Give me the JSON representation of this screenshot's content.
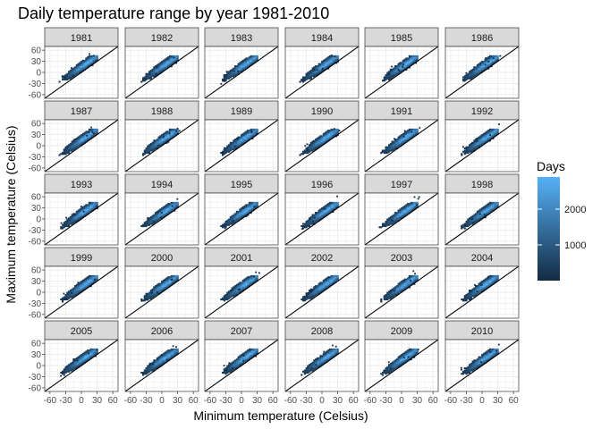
{
  "chart_data": {
    "type": "heatmap",
    "title": "Daily temperature range by year 1981-2010",
    "xlabel": "Minimum temperature (Celsius)",
    "ylabel": "Maximum temperature (Celsius)",
    "facets": [
      "1981",
      "1982",
      "1983",
      "1984",
      "1985",
      "1986",
      "1987",
      "1988",
      "1989",
      "1990",
      "1991",
      "1992",
      "1993",
      "1994",
      "1995",
      "1996",
      "1997",
      "1998",
      "1999",
      "2000",
      "2001",
      "2002",
      "2003",
      "2004",
      "2005",
      "2006",
      "2007",
      "2008",
      "2009",
      "2010"
    ],
    "facet_columns": 6,
    "xlim": [
      -70,
      70
    ],
    "ylim": [
      -70,
      70
    ],
    "x_ticks": [
      -60,
      -30,
      0,
      30,
      60
    ],
    "y_ticks": [
      -60,
      -30,
      0,
      30,
      60
    ],
    "x_tick_labels": [
      "-60",
      "-30",
      "0",
      "30",
      "60"
    ],
    "y_tick_labels": [
      "-60",
      "-30",
      "0",
      "30",
      "60"
    ],
    "reference_line": "y = x",
    "grid": true,
    "legend": {
      "title": "Days",
      "position": "right",
      "breaks": [
        1000,
        2000
      ],
      "break_labels": [
        "1000",
        "2000"
      ],
      "range": [
        1,
        2900
      ],
      "low_color": "#132b43",
      "high_color": "#56b1f7"
    },
    "density_model": {
      "min_temp_range": [
        -45,
        30
      ],
      "max_temp_range": [
        -25,
        45
      ],
      "peak_min_temp": 10,
      "peak_max_temp": 25
    },
    "colors": {
      "strip_fill": "#d9d9d9",
      "panel_border": "#333333",
      "grid": "#ebebeb",
      "line": "#000000"
    }
  }
}
